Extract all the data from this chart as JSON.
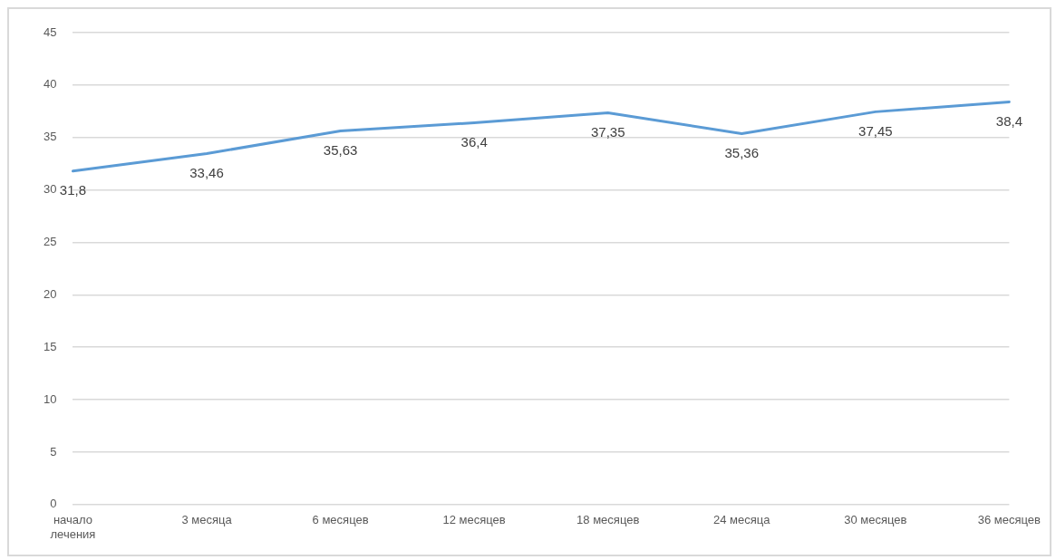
{
  "chart_data": {
    "type": "line",
    "categories": [
      "начало лечения",
      "3 месяца",
      "6 месяцев",
      "12 месяцев",
      "18 месяцев",
      "24 месяца",
      "30 месяцев",
      "36 месяцев"
    ],
    "series": [
      {
        "color": "#5b9bd5",
        "values": [
          31.8,
          33.46,
          35.63,
          36.4,
          37.35,
          35.36,
          37.45,
          38.4
        ],
        "value_labels": [
          "31,8",
          "33,46",
          "35,63",
          "36,4",
          "37,35",
          "35,36",
          "37,45",
          "38,4"
        ]
      }
    ],
    "ylim": [
      0,
      45
    ],
    "yticks": [
      0,
      5,
      10,
      15,
      20,
      25,
      30,
      35,
      40,
      45
    ],
    "grid": "y",
    "legend": false,
    "marker": "none",
    "line_style": "solid"
  }
}
